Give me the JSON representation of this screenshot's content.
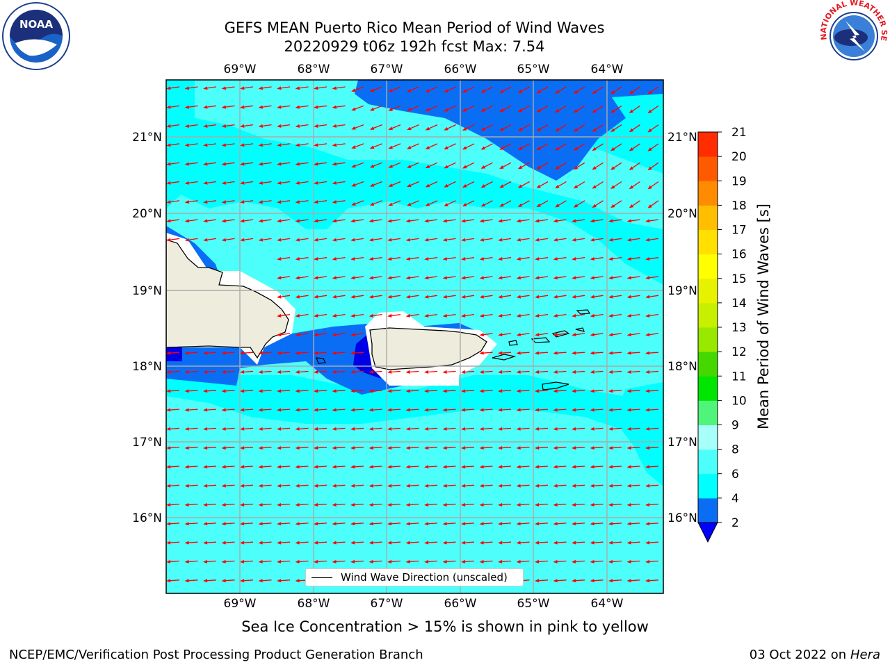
{
  "title": {
    "line1": "GEFS MEAN Puerto Rico Mean Period of Wind Waves",
    "line2": "20220929 t06z 192h fcst   Max: 7.54"
  },
  "map": {
    "lon_labels": [
      "69°W",
      "68°W",
      "67°W",
      "66°W",
      "65°W",
      "64°W"
    ],
    "lat_labels": [
      "21°N",
      "20°N",
      "19°N",
      "18°N",
      "17°N",
      "16°N"
    ],
    "land_color": "#eeecdc",
    "field_colors": {
      "2-4": "#0a6ef5",
      "4-6": "#00ffff",
      "6-8": "#4dfffa",
      "deep": "#0000e6"
    },
    "arrow_color": "#ff0000",
    "vector_legend": "Wind Wave Direction (unscaled)"
  },
  "colorbar": {
    "label": "Mean Period of Wind Waves [s]",
    "ticks": [
      "2",
      "4",
      "6",
      "8",
      "9",
      "10",
      "11",
      "12",
      "13",
      "14",
      "15",
      "16",
      "17",
      "18",
      "19",
      "20",
      "21"
    ],
    "colors": [
      "#0a6ef5",
      "#00ffff",
      "#4dfffa",
      "#a6fff9",
      "#4ff57a",
      "#00e600",
      "#44d800",
      "#98e800",
      "#c6f000",
      "#e6f200",
      "#ffff00",
      "#ffe000",
      "#ffbf00",
      "#ff8c00",
      "#ff5a00",
      "#ff2d00",
      "#ff0000"
    ],
    "under_color": "#0000ff"
  },
  "note": "Sea Ice Concentration > 15% is shown in pink to yellow",
  "footer": {
    "left": "NCEP/EMC/Verification Post Processing Product Generation Branch",
    "date": "03 Oct 2022 on",
    "host": "Hera"
  },
  "logos": {
    "noaa_text": "NOAA",
    "nws_text": "NATIONAL WEATHER SERVICE"
  }
}
